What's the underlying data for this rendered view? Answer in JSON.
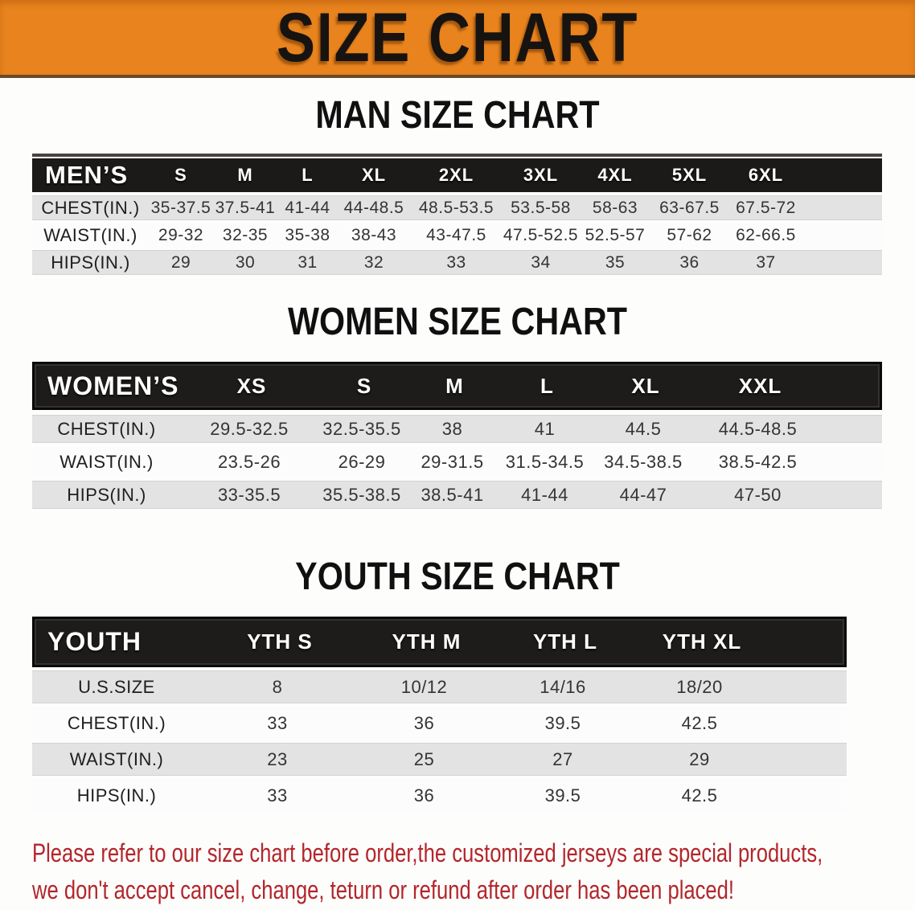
{
  "banner": {
    "title": "SIZE CHART",
    "bg_color": "#E8831D",
    "text_color": "#171310"
  },
  "tables": {
    "men": {
      "section_title": "MAN SIZE CHART",
      "header": {
        "label": "MEN’S",
        "sizes": [
          "S",
          "M",
          "L",
          "XL",
          "2XL",
          "3XL",
          "4XL",
          "5XL",
          "6XL"
        ]
      },
      "rows": [
        {
          "label": "CHEST(IN.)",
          "values": [
            "35-37.5",
            "37.5-41",
            "41-44",
            "44-48.5",
            "48.5-53.5",
            "53.5-58",
            "58-63",
            "63-67.5",
            "67.5-72"
          ]
        },
        {
          "label": "WAIST(IN.)",
          "values": [
            "29-32",
            "32-35",
            "35-38",
            "38-43",
            "43-47.5",
            "47.5-52.5",
            "52.5-57",
            "57-62",
            "62-66.5"
          ]
        },
        {
          "label": "HIPS(IN.)",
          "values": [
            "29",
            "30",
            "31",
            "32",
            "33",
            "34",
            "35",
            "36",
            "37"
          ]
        }
      ]
    },
    "women": {
      "section_title": "WOMEN SIZE CHART",
      "header": {
        "label": "WOMEN’S",
        "sizes": [
          "XS",
          "S",
          "M",
          "L",
          "XL",
          "XXL"
        ]
      },
      "rows": [
        {
          "label": "CHEST(IN.)",
          "values": [
            "29.5-32.5",
            "32.5-35.5",
            "38",
            "41",
            "44.5",
            "44.5-48.5"
          ]
        },
        {
          "label": "WAIST(IN.)",
          "values": [
            "23.5-26",
            "26-29",
            "29-31.5",
            "31.5-34.5",
            "34.5-38.5",
            "38.5-42.5"
          ]
        },
        {
          "label": "HIPS(IN.)",
          "values": [
            "33-35.5",
            "35.5-38.5",
            "38.5-41",
            "41-44",
            "44-47",
            "47-50"
          ]
        }
      ]
    },
    "youth": {
      "section_title": "YOUTH SIZE CHART",
      "header": {
        "label": "YOUTH",
        "sizes": [
          "YTH S",
          "YTH M",
          "YTH L",
          "YTH XL"
        ]
      },
      "rows": [
        {
          "label": "U.S.SIZE",
          "values": [
            "8",
            "10/12",
            "14/16",
            "18/20"
          ]
        },
        {
          "label": "CHEST(IN.)",
          "values": [
            "33",
            "36",
            "39.5",
            "42.5"
          ]
        },
        {
          "label": "WAIST(IN.)",
          "values": [
            "23",
            "25",
            "27",
            "29"
          ]
        },
        {
          "label": "HIPS(IN.)",
          "values": [
            "33",
            "36",
            "39.5",
            "42.5"
          ]
        }
      ]
    }
  },
  "footer": {
    "line1": "Please refer to our size chart before order,the customized jerseys are special products,",
    "line2": "we don't accept cancel, change, teturn or refund after order has been placed!",
    "text_color": "#B3262B"
  },
  "colors": {
    "header_bar": "#1B1A19",
    "row_gray": "#E3E3E3",
    "row_white": "#FCFCFC",
    "banner_orange": "#E8831D",
    "disclaimer_red": "#B3262B"
  }
}
